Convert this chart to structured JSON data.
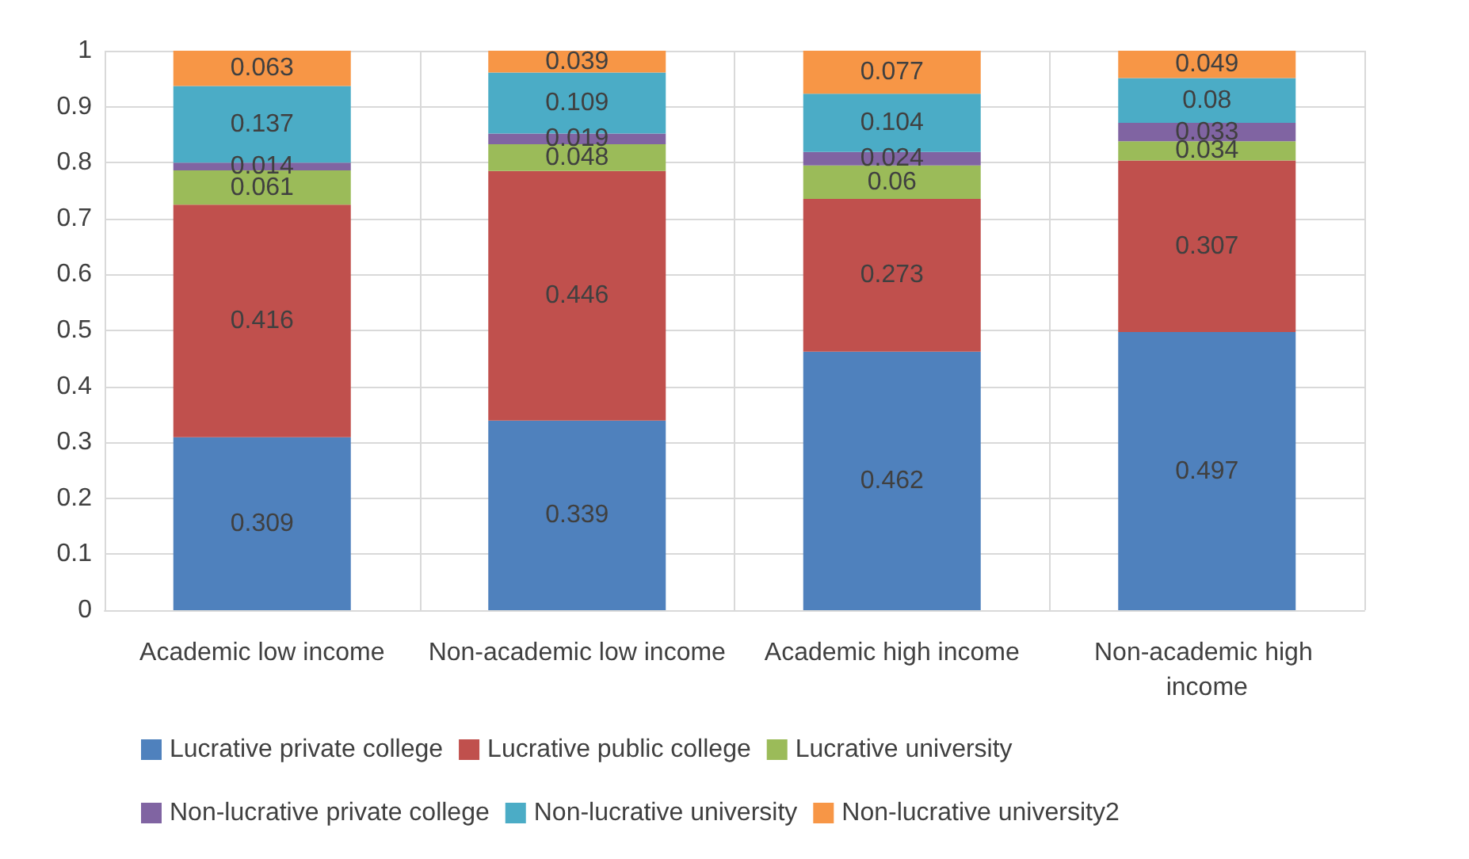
{
  "chart_data": {
    "type": "bar",
    "stacked": true,
    "data_labels": true,
    "grid": "y",
    "legend": "bottom",
    "categories": [
      "Academic low income",
      "Non-academic low income",
      "Academic high income",
      "Non-academic high income"
    ],
    "ylim": [
      0,
      1
    ],
    "yticks": [
      0,
      0.1,
      0.2,
      0.3,
      0.4,
      0.5,
      0.6,
      0.7,
      0.8,
      0.9,
      1
    ],
    "series": [
      {
        "name": "Lucrative private college",
        "color": "#4f81bd",
        "values": [
          0.309,
          0.339,
          0.462,
          0.497
        ]
      },
      {
        "name": "Lucrative public college",
        "color": "#c0504d",
        "values": [
          0.416,
          0.446,
          0.273,
          0.307
        ]
      },
      {
        "name": "Lucrative university",
        "color": "#9bbb59",
        "values": [
          0.061,
          0.048,
          0.06,
          0.034
        ]
      },
      {
        "name": "Non-lucrative private college",
        "color": "#8064a2",
        "values": [
          0.014,
          0.019,
          0.024,
          0.033
        ]
      },
      {
        "name": "Non-lucrative university",
        "color": "#4bacc6",
        "values": [
          0.137,
          0.109,
          0.104,
          0.08
        ]
      },
      {
        "name": "Non-lucrative university2",
        "color": "#f79646",
        "values": [
          0.063,
          0.039,
          0.077,
          0.049
        ]
      }
    ]
  }
}
